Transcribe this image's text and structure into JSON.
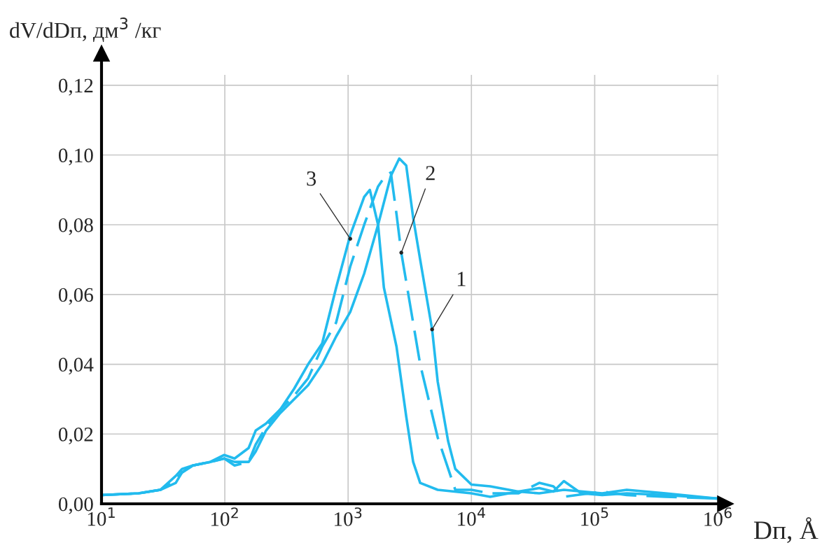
{
  "chart_data": {
    "type": "line",
    "xlabel": "Dп, Å",
    "ylabel": "dV/dDп, дм$^{3}$ /кг",
    "log": "x",
    "grid": true,
    "legend": false,
    "marker": "none",
    "xlim": [
      10,
      1000000
    ],
    "ylim": [
      0,
      0.123
    ],
    "xticks": [
      {
        "value": 10,
        "label": "10$^{1}$"
      },
      {
        "value": 100,
        "label": "10$^{2}$"
      },
      {
        "value": 1000,
        "label": "10$^{3}$"
      },
      {
        "value": 10000,
        "label": "10$^{4}$"
      },
      {
        "value": 100000,
        "label": "10$^{5}$"
      },
      {
        "value": 1000000,
        "label": "10$^{6}$"
      }
    ],
    "yticks": [
      {
        "value": 0,
        "label": "0,00"
      },
      {
        "value": 0.02,
        "label": "0,02"
      },
      {
        "value": 0.04,
        "label": "0,04"
      },
      {
        "value": 0.06,
        "label": "0,06"
      },
      {
        "value": 0.08,
        "label": "0,08"
      },
      {
        "value": 0.1,
        "label": "0,10"
      },
      {
        "value": 0.12,
        "label": "0,12"
      }
    ],
    "series": [
      {
        "color": "#22bbee",
        "line_style": "solid",
        "x": [
          10,
          20,
          30,
          40,
          45,
          55,
          76,
          99,
          120,
          156,
          178,
          216,
          281,
          365,
          474,
          616,
          800,
          1040,
          1350,
          1750,
          2220,
          2600,
          2960,
          3370,
          3840,
          4800,
          5330,
          6470,
          7400,
          10000,
          14200,
          24000,
          35500,
          46200,
          56200,
          77800,
          115000,
          182000,
          375000,
          1000000
        ],
        "values": [
          0.0025,
          0.003,
          0.004,
          0.006,
          0.009,
          0.011,
          0.012,
          0.013,
          0.012,
          0.012,
          0.015,
          0.021,
          0.026,
          0.03,
          0.034,
          0.04,
          0.048,
          0.055,
          0.066,
          0.08,
          0.094,
          0.099,
          0.097,
          0.082,
          0.07,
          0.05,
          0.035,
          0.018,
          0.01,
          0.0055,
          0.005,
          0.0035,
          0.0045,
          0.0035,
          0.0065,
          0.003,
          0.0025,
          0.003,
          0.0025,
          0.0015
        ]
      },
      {
        "color": "#22bbee",
        "line_style": "dashed",
        "x": [
          10,
          20,
          30,
          40,
          45,
          55,
          76,
          99,
          120,
          156,
          178,
          216,
          281,
          365,
          474,
          616,
          800,
          1040,
          1350,
          1750,
          2000,
          2220,
          2470,
          2700,
          3840,
          5330,
          7400,
          10000,
          14200,
          24000,
          35500,
          46200,
          56200,
          115000,
          182000,
          375000,
          1000000
        ],
        "values": [
          0.0025,
          0.003,
          0.004,
          0.007,
          0.009,
          0.011,
          0.012,
          0.013,
          0.011,
          0.012,
          0.017,
          0.022,
          0.027,
          0.031,
          0.036,
          0.045,
          0.052,
          0.068,
          0.08,
          0.091,
          0.094,
          0.095,
          0.083,
          0.072,
          0.04,
          0.019,
          0.004,
          0.004,
          0.003,
          0.003,
          0.006,
          0.005,
          0.002,
          0.0035,
          0.0025,
          0.002,
          0.0015
        ]
      },
      {
        "color": "#22bbee",
        "line_style": "solid",
        "x": [
          10,
          20,
          30,
          40,
          45,
          55,
          76,
          99,
          120,
          156,
          178,
          216,
          281,
          365,
          474,
          616,
          800,
          1040,
          1350,
          1500,
          1750,
          1950,
          2470,
          2960,
          3370,
          3840,
          5330,
          10000,
          14200,
          24000,
          35500,
          56200,
          115000,
          182000,
          375000,
          1000000
        ],
        "values": [
          0.0025,
          0.003,
          0.004,
          0.008,
          0.01,
          0.011,
          0.012,
          0.014,
          0.013,
          0.016,
          0.021,
          0.023,
          0.027,
          0.033,
          0.04,
          0.046,
          0.062,
          0.077,
          0.088,
          0.09,
          0.08,
          0.062,
          0.045,
          0.025,
          0.012,
          0.006,
          0.004,
          0.003,
          0.002,
          0.0035,
          0.003,
          0.004,
          0.003,
          0.004,
          0.003,
          0.0015
        ]
      }
    ],
    "annotations": [
      {
        "text": "3",
        "x": 1040,
        "y": 0.076
      },
      {
        "text": "2",
        "x": 2700,
        "y": 0.072
      },
      {
        "text": "1",
        "x": 4800,
        "y": 0.05
      }
    ]
  }
}
